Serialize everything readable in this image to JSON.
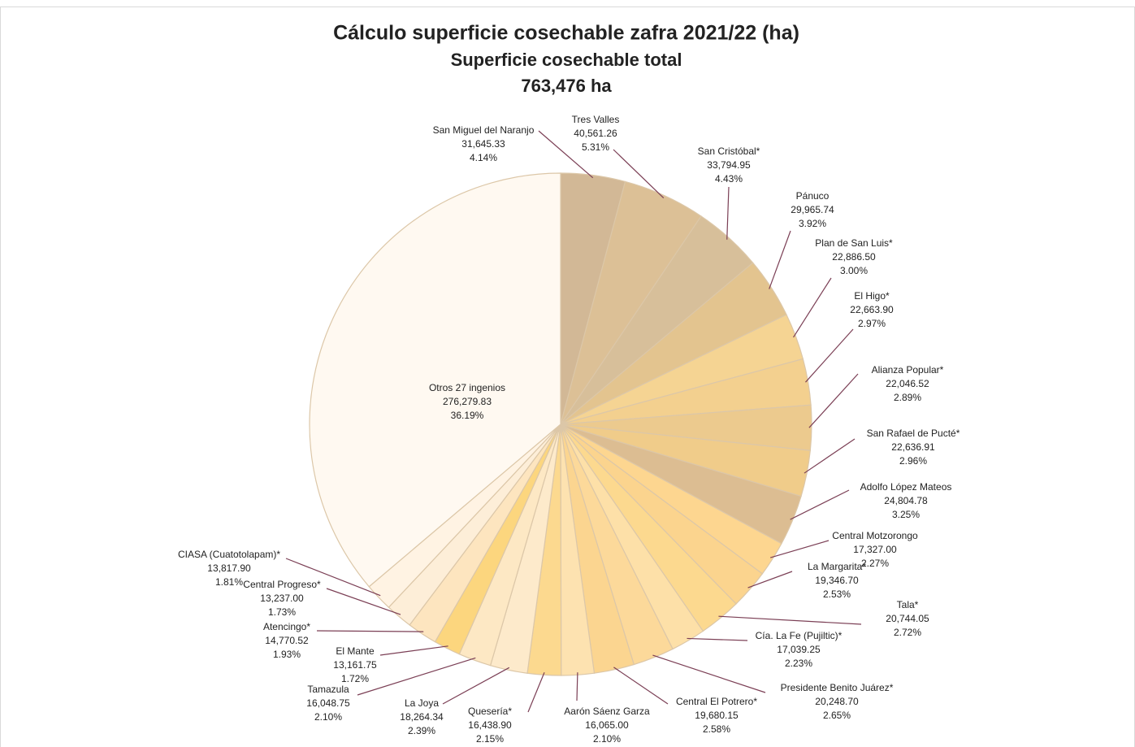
{
  "chart_data": {
    "type": "pie",
    "title": "Cálculo superficie cosechable zafra 2021/22 (ha)",
    "subtitle": "Superficie cosechable total",
    "total_label": "763,476 ha",
    "categories": [
      "San Miguel del Naranjo",
      "Tres Valles",
      "San Cristóbal*",
      "Pánuco",
      "Plan de San Luis*",
      "El Higo*",
      "Alianza Popular*",
      "San Rafael de Pucté*",
      "Adolfo López Mateos",
      "Central Motzorongo",
      "La Margarita*",
      "Tala*",
      "Cía. La Fe (Pujiltic)*",
      "Presidente Benito Juárez*",
      "Central El Potrero*",
      "Aarón Sáenz Garza",
      "Quesería*",
      "La Joya",
      "Tamazula",
      "El Mante",
      "Atencingo*",
      "Central Progreso*",
      "CIASA (Cuatotolapam)*",
      "Otros 27 ingenios"
    ],
    "values": [
      31645.33,
      40561.26,
      33794.95,
      29965.74,
      22886.5,
      22663.9,
      22046.52,
      22636.91,
      24804.78,
      17327.0,
      19346.7,
      20744.05,
      17039.25,
      20248.7,
      19680.15,
      16065.0,
      16438.9,
      18264.34,
      16048.75,
      13161.75,
      14770.52,
      13237.0,
      13817.9,
      276279.83
    ],
    "value_labels": [
      "31,645.33",
      "40,561.26",
      "33,794.95",
      "29,965.74",
      "22,886.50",
      "22,663.90",
      "22,046.52",
      "22,636.91",
      "24,804.78",
      "17,327.00",
      "19,346.70",
      "20,744.05",
      "17,039.25",
      "20,248.70",
      "19,680.15",
      "16,065.00",
      "16,438.90",
      "18,264.34",
      "16,048.75",
      "13,161.75",
      "14,770.52",
      "13,237.00",
      "13,817.90",
      "276,279.83"
    ],
    "percent_labels": [
      "4.14%",
      "5.31%",
      "4.43%",
      "3.92%",
      "3.00%",
      "2.97%",
      "2.89%",
      "2.96%",
      "3.25%",
      "2.27%",
      "2.53%",
      "2.72%",
      "2.23%",
      "2.65%",
      "2.58%",
      "2.10%",
      "2.15%",
      "2.39%",
      "2.10%",
      "1.72%",
      "1.93%",
      "1.73%",
      "1.81%",
      "36.19%"
    ],
    "colors": [
      "#d2b896",
      "#dcc096",
      "#d7bf9a",
      "#e3c48f",
      "#f5d493",
      "#f3d08f",
      "#ecca8e",
      "#f0cc8a",
      "#dcbd92",
      "#fdd690",
      "#fbd48e",
      "#fcd98f",
      "#fde0a8",
      "#fcd99a",
      "#fbd590",
      "#fde2b0",
      "#fcd98f",
      "#fdeacb",
      "#fde8c4",
      "#fcd67e",
      "#fde5bf",
      "#fdeed8",
      "#fff3e3",
      "#fff9f1"
    ]
  }
}
